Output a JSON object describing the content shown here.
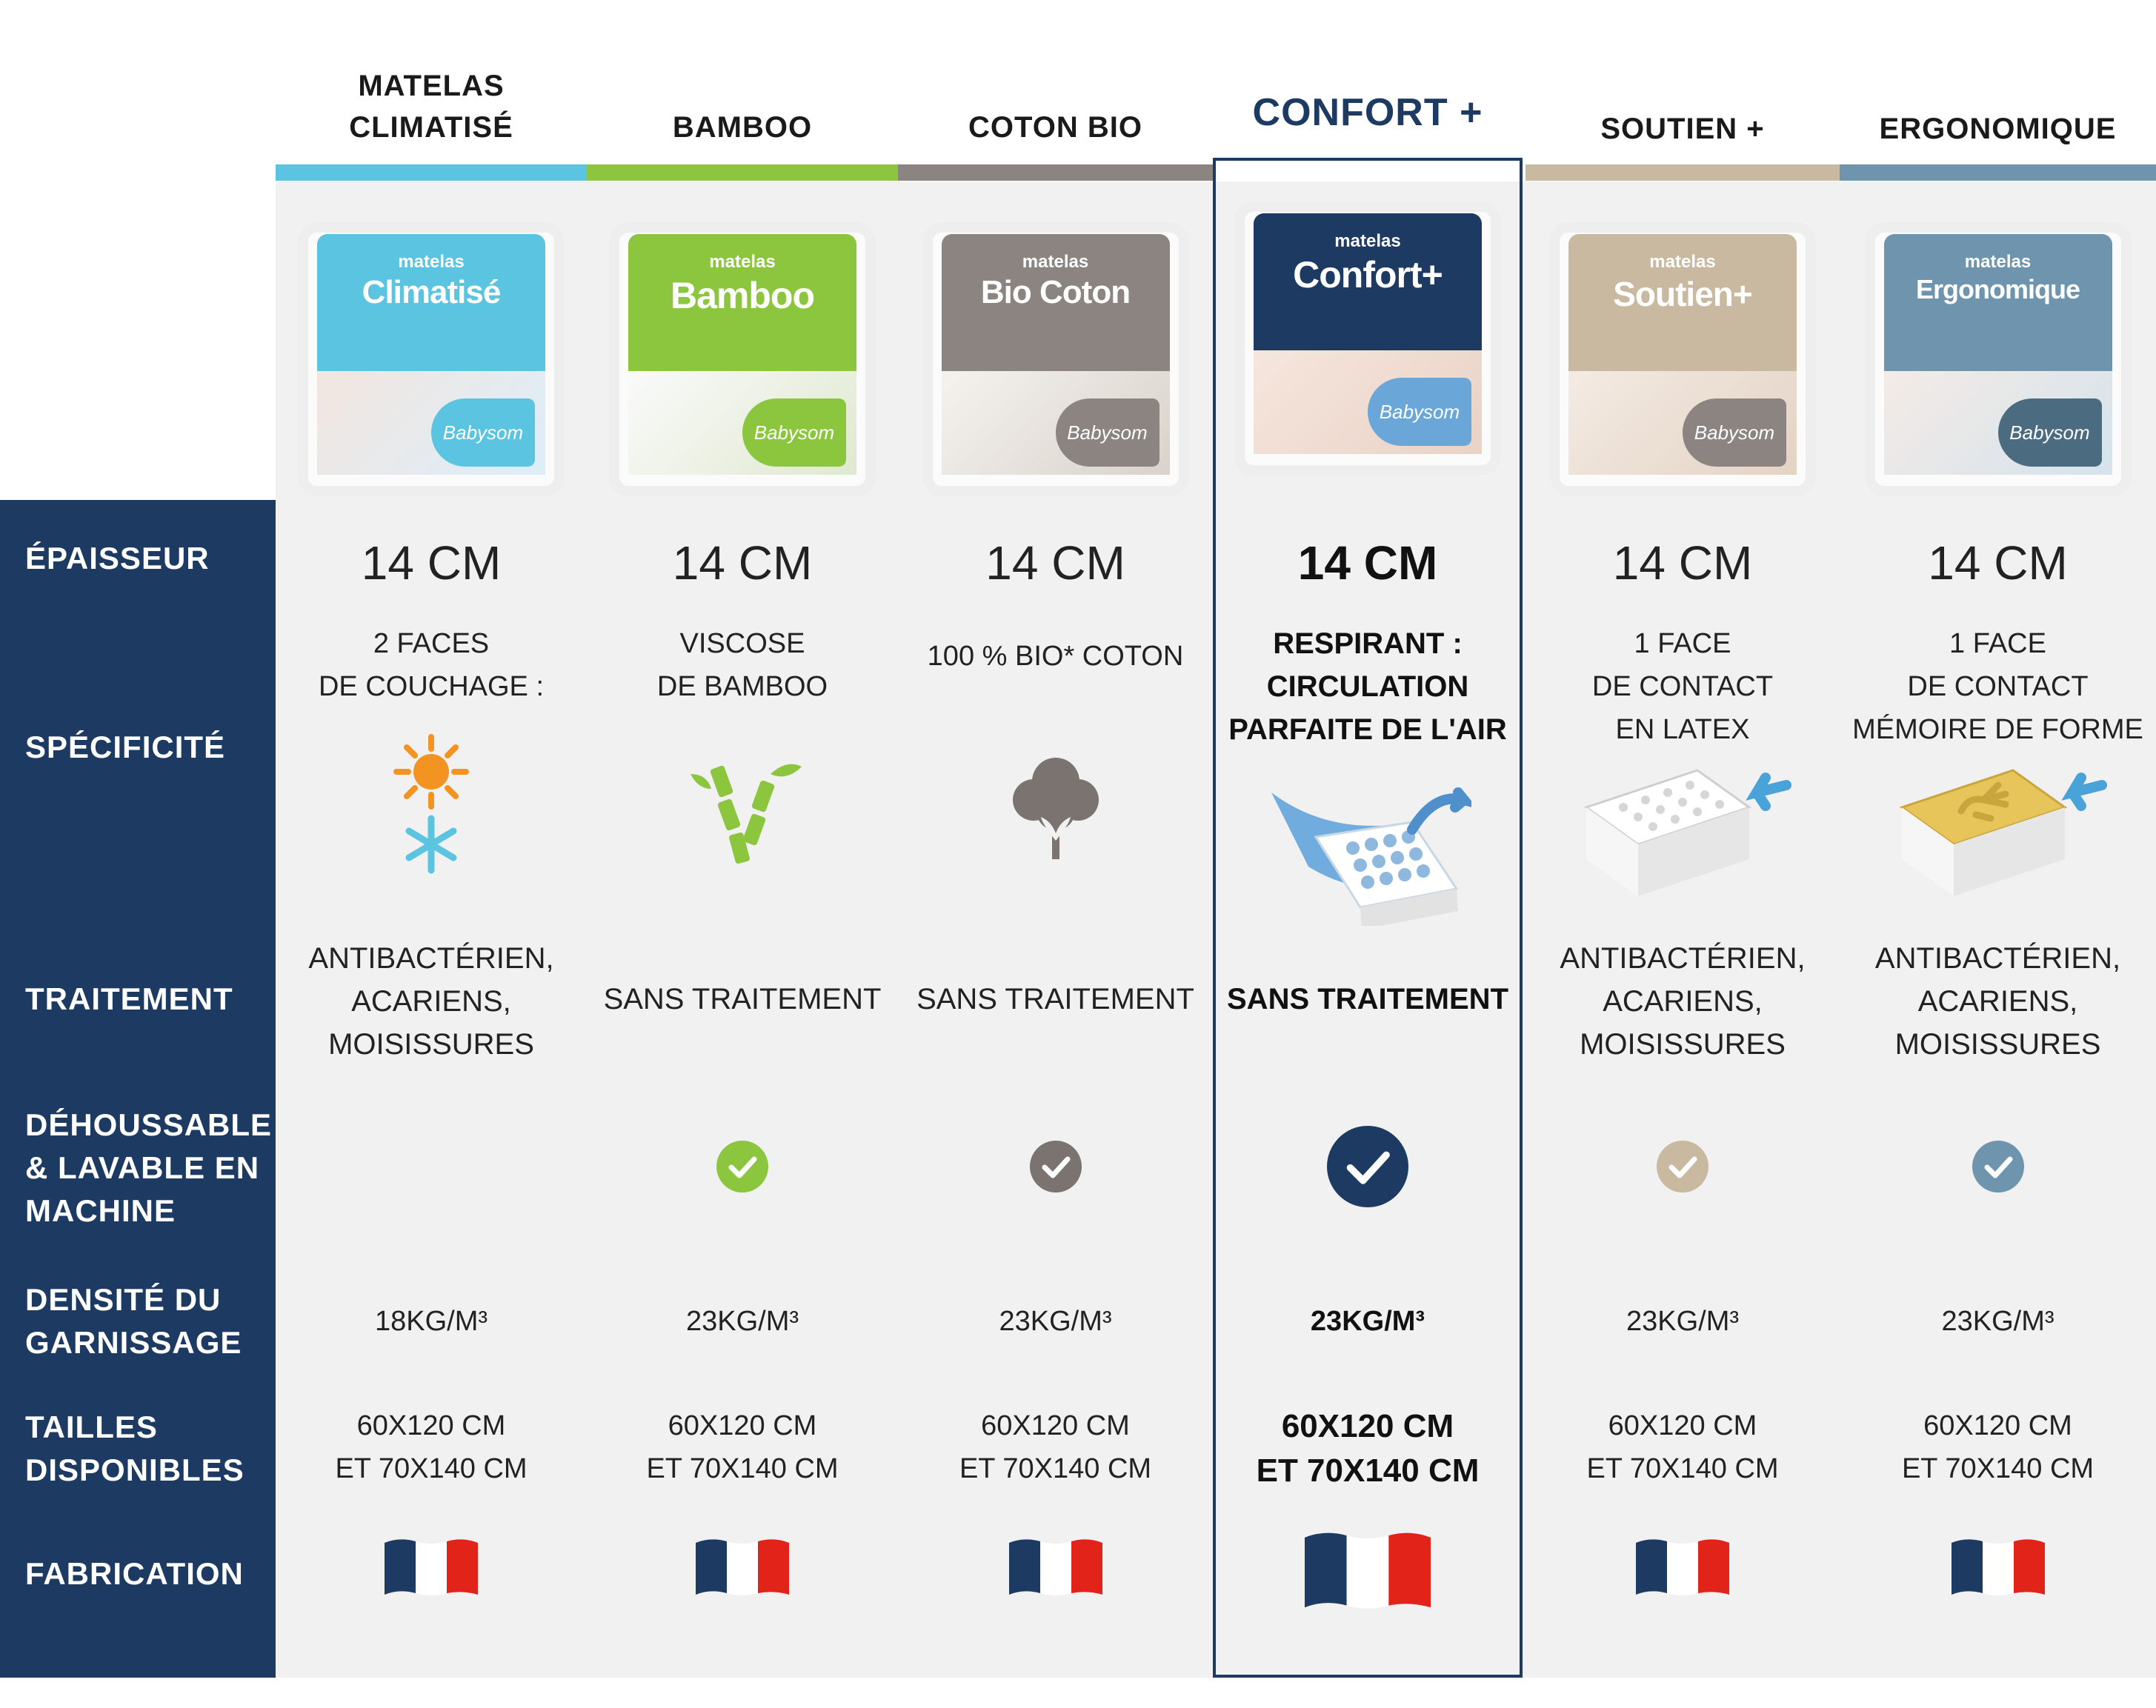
{
  "colors": {
    "navy": "#1d3a62",
    "climatise": "#5bc4e0",
    "bamboo": "#8cc63f",
    "coton": "#8c8481",
    "confort": "#1d3a62",
    "soutien": "#c8b9a0",
    "ergonomique": "#6e94ae"
  },
  "row_labels": {
    "epaisseur": "ÉPAISSEUR",
    "specificite": "SPÉCIFICITÉ",
    "traitement": "TRAITEMENT",
    "dehoussable": "DÉHOUSSABLE\n& LAVABLE EN\nMACHINE",
    "densite": "DENSITÉ DU\nGARNISSAGE",
    "tailles": "TAILLES\nDISPONIBLES",
    "fabrication": "FABRICATION"
  },
  "columns": [
    {
      "header": "MATELAS\nCLIMATISÉ",
      "pack_small": "matelas",
      "pack_word": "Climatisé",
      "thickness": "14 CM",
      "spec": "2 FACES\nDE COUCHAGE :",
      "spec_icon": "sun-snowflake-icon",
      "treatment": "ANTIBACTÉRIEN,\nACARIENS,\nMOISISSURES",
      "washable": false,
      "density": "18KG/M³",
      "sizes": "60X120 CM\nET 70X140 CM",
      "fabrication": "france-flag-icon"
    },
    {
      "header": "BAMBOO",
      "pack_small": "matelas",
      "pack_word": "Bamboo",
      "thickness": "14 CM",
      "spec": "VISCOSE\nDE BAMBOO",
      "spec_icon": "bamboo-icon",
      "treatment": "SANS TRAITEMENT",
      "washable": true,
      "density": "23KG/M³",
      "sizes": "60X120 CM\nET 70X140 CM",
      "fabrication": "france-flag-icon"
    },
    {
      "header": "COTON BIO",
      "pack_small": "matelas",
      "pack_word": "Bio Coton",
      "thickness": "14 CM",
      "spec": "100 % BIO* COTON",
      "spec_icon": "cotton-flower-icon",
      "treatment": "SANS TRAITEMENT",
      "washable": true,
      "density": "23KG/M³",
      "sizes": "60X120 CM\nET 70X140 CM",
      "fabrication": "france-flag-icon"
    },
    {
      "header": "CONFORT +",
      "pack_small": "matelas",
      "pack_word": "Confort+",
      "thickness": "14 CM",
      "spec": "RESPIRANT :\nCIRCULATION\nPARFAITE DE L'AIR",
      "spec_icon": "airflow-mesh-icon",
      "treatment": "SANS TRAITEMENT",
      "washable": true,
      "density": "23KG/M³",
      "sizes": "60X120 CM\nET 70X140 CM",
      "fabrication": "france-flag-icon"
    },
    {
      "header": "SOUTIEN +",
      "pack_small": "matelas",
      "pack_word": "Soutien+",
      "thickness": "14 CM",
      "spec": "1 FACE\nDE CONTACT\nEN LATEX",
      "spec_icon": "latex-layer-icon",
      "treatment": "ANTIBACTÉRIEN,\nACARIENS,\nMOISISSURES",
      "washable": true,
      "density": "23KG/M³",
      "sizes": "60X120 CM\nET 70X140 CM",
      "fabrication": "france-flag-icon"
    },
    {
      "header": "ERGONOMIQUE",
      "pack_small": "matelas",
      "pack_word": "Ergonomique",
      "thickness": "14 CM",
      "spec": "1 FACE\nDE CONTACT\nMÉMOIRE DE FORME",
      "spec_icon": "memory-foam-icon",
      "treatment": "ANTIBACTÉRIEN,\nACARIENS,\nMOISISSURES",
      "washable": true,
      "density": "23KG/M³",
      "sizes": "60X120 CM\nET 70X140 CM",
      "fabrication": "france-flag-icon"
    }
  ],
  "brand": "Babysom"
}
